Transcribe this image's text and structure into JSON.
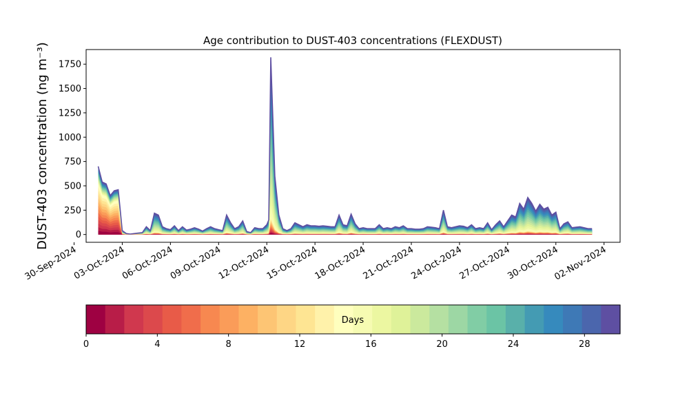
{
  "chart_data": {
    "type": "area",
    "stacked": true,
    "title": "Age contribution to DUST-403 concentrations (FLEXDUST)",
    "ylabel": "DUST-403 concentration (ng m⁻³)",
    "xlabel": "",
    "ylim": [
      -80,
      1900
    ],
    "xlim": [
      "2024-09-30T18:00",
      "2024-11-03T00:00"
    ],
    "yticks": [
      0,
      250,
      500,
      750,
      1000,
      1250,
      1500,
      1750
    ],
    "ytick_labels": [
      "0",
      "250",
      "500",
      "750",
      "1000",
      "1250",
      "1500",
      "1750"
    ],
    "xticks": [
      "2024-09-30",
      "2024-10-03",
      "2024-10-06",
      "2024-10-09",
      "2024-10-12",
      "2024-10-15",
      "2024-10-18",
      "2024-10-21",
      "2024-10-24",
      "2024-10-27",
      "2024-10-30",
      "2024-11-02"
    ],
    "xtick_labels": [
      "30-Sep-2024",
      "03-Oct-2024",
      "06-Oct-2024",
      "09-Oct-2024",
      "12-Oct-2024",
      "15-Oct-2024",
      "18-Oct-2024",
      "21-Oct-2024",
      "24-Oct-2024",
      "27-Oct-2024",
      "30-Oct-2024",
      "02-Nov-2024"
    ],
    "x": [
      "2024-10-01T12:00",
      "2024-10-01T18:00",
      "2024-10-02T00:00",
      "2024-10-02T06:00",
      "2024-10-02T12:00",
      "2024-10-02T18:00",
      "2024-10-03T00:00",
      "2024-10-03T06:00",
      "2024-10-03T12:00",
      "2024-10-03T18:00",
      "2024-10-04T00:00",
      "2024-10-04T06:00",
      "2024-10-04T12:00",
      "2024-10-04T18:00",
      "2024-10-05T00:00",
      "2024-10-05T06:00",
      "2024-10-05T12:00",
      "2024-10-05T18:00",
      "2024-10-06T00:00",
      "2024-10-06T06:00",
      "2024-10-06T12:00",
      "2024-10-06T18:00",
      "2024-10-07T00:00",
      "2024-10-07T06:00",
      "2024-10-07T12:00",
      "2024-10-07T18:00",
      "2024-10-08T00:00",
      "2024-10-08T06:00",
      "2024-10-08T12:00",
      "2024-10-08T18:00",
      "2024-10-09T00:00",
      "2024-10-09T06:00",
      "2024-10-09T12:00",
      "2024-10-09T18:00",
      "2024-10-10T00:00",
      "2024-10-10T06:00",
      "2024-10-10T12:00",
      "2024-10-10T18:00",
      "2024-10-11T00:00",
      "2024-10-11T06:00",
      "2024-10-11T12:00",
      "2024-10-11T18:00",
      "2024-10-12T00:00",
      "2024-10-12T03:00",
      "2024-10-12T06:00",
      "2024-10-12T12:00",
      "2024-10-12T18:00",
      "2024-10-13T00:00",
      "2024-10-13T06:00",
      "2024-10-13T12:00",
      "2024-10-13T18:00",
      "2024-10-14T00:00",
      "2024-10-14T06:00",
      "2024-10-14T12:00",
      "2024-10-14T18:00",
      "2024-10-15T00:00",
      "2024-10-15T06:00",
      "2024-10-15T12:00",
      "2024-10-15T18:00",
      "2024-10-16T00:00",
      "2024-10-16T06:00",
      "2024-10-16T12:00",
      "2024-10-16T18:00",
      "2024-10-17T00:00",
      "2024-10-17T06:00",
      "2024-10-17T12:00",
      "2024-10-17T18:00",
      "2024-10-18T00:00",
      "2024-10-18T06:00",
      "2024-10-18T12:00",
      "2024-10-18T18:00",
      "2024-10-19T00:00",
      "2024-10-19T06:00",
      "2024-10-19T12:00",
      "2024-10-19T18:00",
      "2024-10-20T00:00",
      "2024-10-20T06:00",
      "2024-10-20T12:00",
      "2024-10-20T18:00",
      "2024-10-21T00:00",
      "2024-10-21T06:00",
      "2024-10-21T12:00",
      "2024-10-21T18:00",
      "2024-10-22T00:00",
      "2024-10-22T06:00",
      "2024-10-22T12:00",
      "2024-10-22T18:00",
      "2024-10-23T00:00",
      "2024-10-23T06:00",
      "2024-10-23T12:00",
      "2024-10-23T18:00",
      "2024-10-24T00:00",
      "2024-10-24T06:00",
      "2024-10-24T12:00",
      "2024-10-24T18:00",
      "2024-10-25T00:00",
      "2024-10-25T06:00",
      "2024-10-25T12:00",
      "2024-10-25T18:00",
      "2024-10-26T00:00",
      "2024-10-26T06:00",
      "2024-10-26T12:00",
      "2024-10-26T18:00",
      "2024-10-27T00:00",
      "2024-10-27T06:00",
      "2024-10-27T12:00",
      "2024-10-27T18:00",
      "2024-10-28T00:00",
      "2024-10-28T06:00",
      "2024-10-28T12:00",
      "2024-10-28T18:00",
      "2024-10-29T00:00",
      "2024-10-29T06:00",
      "2024-10-29T12:00",
      "2024-10-29T18:00",
      "2024-10-30T00:00",
      "2024-10-30T06:00",
      "2024-10-30T12:00",
      "2024-10-30T18:00",
      "2024-10-31T00:00",
      "2024-10-31T06:00",
      "2024-10-31T12:00",
      "2024-10-31T18:00",
      "2024-11-01T00:00",
      "2024-11-01T06:00"
    ],
    "total": [
      700,
      540,
      520,
      400,
      450,
      460,
      40,
      10,
      5,
      10,
      15,
      20,
      80,
      40,
      220,
      200,
      80,
      60,
      50,
      90,
      40,
      80,
      45,
      55,
      70,
      55,
      35,
      60,
      80,
      60,
      50,
      40,
      200,
      120,
      60,
      80,
      140,
      30,
      20,
      70,
      60,
      60,
      100,
      150,
      1820,
      600,
      200,
      60,
      40,
      60,
      120,
      100,
      80,
      100,
      90,
      90,
      85,
      90,
      85,
      80,
      80,
      200,
      100,
      90,
      210,
      110,
      60,
      70,
      60,
      60,
      60,
      100,
      60,
      70,
      60,
      80,
      70,
      90,
      60,
      60,
      55,
      55,
      60,
      80,
      75,
      70,
      60,
      250,
      80,
      70,
      80,
      90,
      85,
      70,
      100,
      60,
      70,
      60,
      120,
      50,
      100,
      140,
      80,
      140,
      200,
      180,
      320,
      260,
      380,
      320,
      240,
      310,
      260,
      280,
      200,
      230,
      60,
      110,
      130,
      70,
      75,
      80,
      70,
      60,
      60,
      40
    ],
    "age_fractions": {
      "note": "",
      "bands": [
        [
          0.0,
          0.75
        ],
        [
          0.0,
          0.75
        ],
        [
          0.0,
          0.75
        ],
        [
          0.0,
          0.75
        ],
        [
          0.0,
          0.75
        ],
        [
          0.0,
          0.75
        ],
        [
          0.0,
          0.15
        ],
        [
          0.0,
          0.1
        ],
        [
          0.0,
          0.1
        ],
        [
          0.0,
          0.1
        ],
        [
          0.0,
          0.1
        ],
        [
          0.0,
          0.1
        ],
        [
          0.0,
          0.1
        ],
        [
          0.0,
          0.1
        ],
        [
          0.0,
          0.1
        ],
        [
          0.0,
          0.1
        ],
        [
          0.0,
          0.1
        ],
        [
          0.0,
          0.1
        ],
        [
          0.0,
          0.1
        ],
        [
          0.0,
          0.1
        ],
        [
          0.0,
          0.1
        ],
        [
          0.0,
          0.1
        ],
        [
          0.0,
          0.1
        ],
        [
          0.0,
          0.1
        ],
        [
          0.0,
          0.1
        ],
        [
          0.0,
          0.1
        ],
        [
          0.0,
          0.1
        ],
        [
          0.0,
          0.1
        ],
        [
          0.0,
          0.1
        ],
        [
          0.0,
          0.1
        ],
        [
          0.0,
          0.1
        ],
        [
          0.0,
          0.1
        ],
        [
          0.0,
          0.1
        ],
        [
          0.0,
          0.1
        ],
        [
          0.0,
          0.1
        ],
        [
          0.0,
          0.1
        ],
        [
          0.0,
          0.1
        ],
        [
          0.0,
          0.1
        ],
        [
          0.0,
          0.1
        ],
        [
          0.0,
          0.1
        ],
        [
          0.0,
          0.1
        ],
        [
          0.0,
          0.1
        ],
        [
          0.0,
          0.1
        ],
        [
          0.0,
          0.1
        ],
        [
          0.0,
          0.1
        ],
        [
          0.0,
          0.1
        ],
        [
          0.0,
          0.1
        ],
        [
          0.0,
          0.1
        ],
        [
          0.0,
          0.1
        ],
        [
          0.0,
          0.1
        ],
        [
          0.0,
          0.1
        ],
        [
          0.0,
          0.1
        ],
        [
          0.0,
          0.1
        ],
        [
          0.0,
          0.1
        ],
        [
          0.0,
          0.1
        ],
        [
          0.0,
          0.1
        ],
        [
          0.0,
          0.1
        ],
        [
          0.0,
          0.1
        ],
        [
          0.0,
          0.1
        ],
        [
          0.0,
          0.1
        ],
        [
          0.0,
          0.1
        ],
        [
          0.0,
          0.1
        ],
        [
          0.0,
          0.1
        ],
        [
          0.0,
          0.1
        ],
        [
          0.0,
          0.1
        ],
        [
          0.0,
          0.1
        ],
        [
          0.0,
          0.1
        ],
        [
          0.0,
          0.1
        ],
        [
          0.0,
          0.1
        ],
        [
          0.0,
          0.1
        ],
        [
          0.0,
          0.1
        ],
        [
          0.0,
          0.1
        ],
        [
          0.0,
          0.1
        ],
        [
          0.0,
          0.1
        ],
        [
          0.0,
          0.1
        ],
        [
          0.0,
          0.1
        ],
        [
          0.0,
          0.1
        ],
        [
          0.0,
          0.1
        ],
        [
          0.0,
          0.1
        ],
        [
          0.0,
          0.1
        ],
        [
          0.0,
          0.1
        ],
        [
          0.0,
          0.1
        ],
        [
          0.0,
          0.1
        ],
        [
          0.0,
          0.1
        ],
        [
          0.0,
          0.1
        ],
        [
          0.0,
          0.1
        ],
        [
          0.0,
          0.1
        ],
        [
          0.0,
          0.1
        ],
        [
          0.0,
          0.1
        ],
        [
          0.0,
          0.1
        ],
        [
          0.0,
          0.1
        ],
        [
          0.0,
          0.1
        ],
        [
          0.0,
          0.1
        ],
        [
          0.0,
          0.1
        ],
        [
          0.0,
          0.1
        ],
        [
          0.0,
          0.1
        ],
        [
          0.0,
          0.1
        ],
        [
          0.0,
          0.1
        ],
        [
          0.0,
          0.1
        ],
        [
          0.0,
          0.1
        ],
        [
          0.0,
          0.1
        ],
        [
          0.0,
          0.1
        ],
        [
          0.0,
          0.1
        ],
        [
          0.0,
          0.1
        ],
        [
          0.0,
          0.1
        ],
        [
          0.0,
          0.1
        ],
        [
          0.0,
          0.1
        ],
        [
          0.0,
          0.1
        ],
        [
          0.0,
          0.1
        ],
        [
          0.0,
          0.1
        ],
        [
          0.0,
          0.1
        ],
        [
          0.0,
          0.1
        ],
        [
          0.0,
          0.1
        ],
        [
          0.0,
          0.1
        ],
        [
          0.0,
          0.1
        ],
        [
          0.0,
          0.1
        ],
        [
          0.0,
          0.1
        ],
        [
          0.0,
          0.1
        ],
        [
          0.0,
          0.1
        ],
        [
          0.0,
          0.1
        ],
        [
          0.0,
          0.1
        ],
        [
          0.0,
          0.1
        ],
        [
          0.0,
          0.1
        ],
        [
          0.0,
          0.1
        ],
        [
          0.0,
          0.1
        ],
        [
          0.0,
          0.1
        ]
      ]
    },
    "colorbar": {
      "label": "Days",
      "range": [
        0,
        30
      ],
      "ticks": [
        0,
        4,
        8,
        12,
        16,
        20,
        24,
        28
      ],
      "tick_labels": [
        "0",
        "4",
        "8",
        "12",
        "16",
        "20",
        "24",
        "28"
      ],
      "colors": [
        "#9e0142",
        "#b81d48",
        "#d0384e",
        "#dc494c",
        "#e85b48",
        "#f06d4b",
        "#f78850",
        "#fa9c59",
        "#fdb163",
        "#fdc574",
        "#fed685",
        "#fee593",
        "#fff2aa",
        "#ffffbe",
        "#f6fbb2",
        "#ecf7a1",
        "#dff299",
        "#cbe99d",
        "#b5e0a2",
        "#9dd7a4",
        "#81cda5",
        "#6bc4a5",
        "#59b0aa",
        "#449bb3",
        "#368abd",
        "#3e79b6",
        "#4b66ad",
        "#5e4fa2"
      ]
    },
    "grid": false,
    "legend": "none"
  }
}
